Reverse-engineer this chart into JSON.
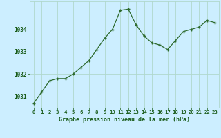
{
  "x": [
    0,
    1,
    2,
    3,
    4,
    5,
    6,
    7,
    8,
    9,
    10,
    11,
    12,
    13,
    14,
    15,
    16,
    17,
    18,
    19,
    20,
    21,
    22,
    23
  ],
  "y": [
    1030.7,
    1031.2,
    1031.7,
    1031.8,
    1031.8,
    1032.0,
    1032.3,
    1032.6,
    1033.1,
    1033.6,
    1034.0,
    1034.85,
    1034.9,
    1034.2,
    1033.7,
    1033.4,
    1033.3,
    1033.1,
    1033.5,
    1033.9,
    1034.0,
    1034.1,
    1034.4,
    1034.3
  ],
  "line_color": "#2d6a2d",
  "marker_color": "#2d6a2d",
  "bg_color": "#cceeff",
  "grid_color": "#b0d8cc",
  "xlabel": "Graphe pression niveau de la mer (hPa)",
  "xlabel_color": "#1a5c1a",
  "tick_color": "#1a5c1a",
  "ylim": [
    1030.5,
    1035.25
  ],
  "ytick_positions": [
    1031,
    1032,
    1033,
    1034
  ],
  "xlim": [
    -0.5,
    23.5
  ],
  "xtick_labels": [
    "0",
    "1",
    "2",
    "3",
    "4",
    "5",
    "6",
    "7",
    "8",
    "9",
    "10",
    "11",
    "12",
    "13",
    "14",
    "15",
    "16",
    "17",
    "18",
    "19",
    "20",
    "21",
    "22",
    "23"
  ]
}
